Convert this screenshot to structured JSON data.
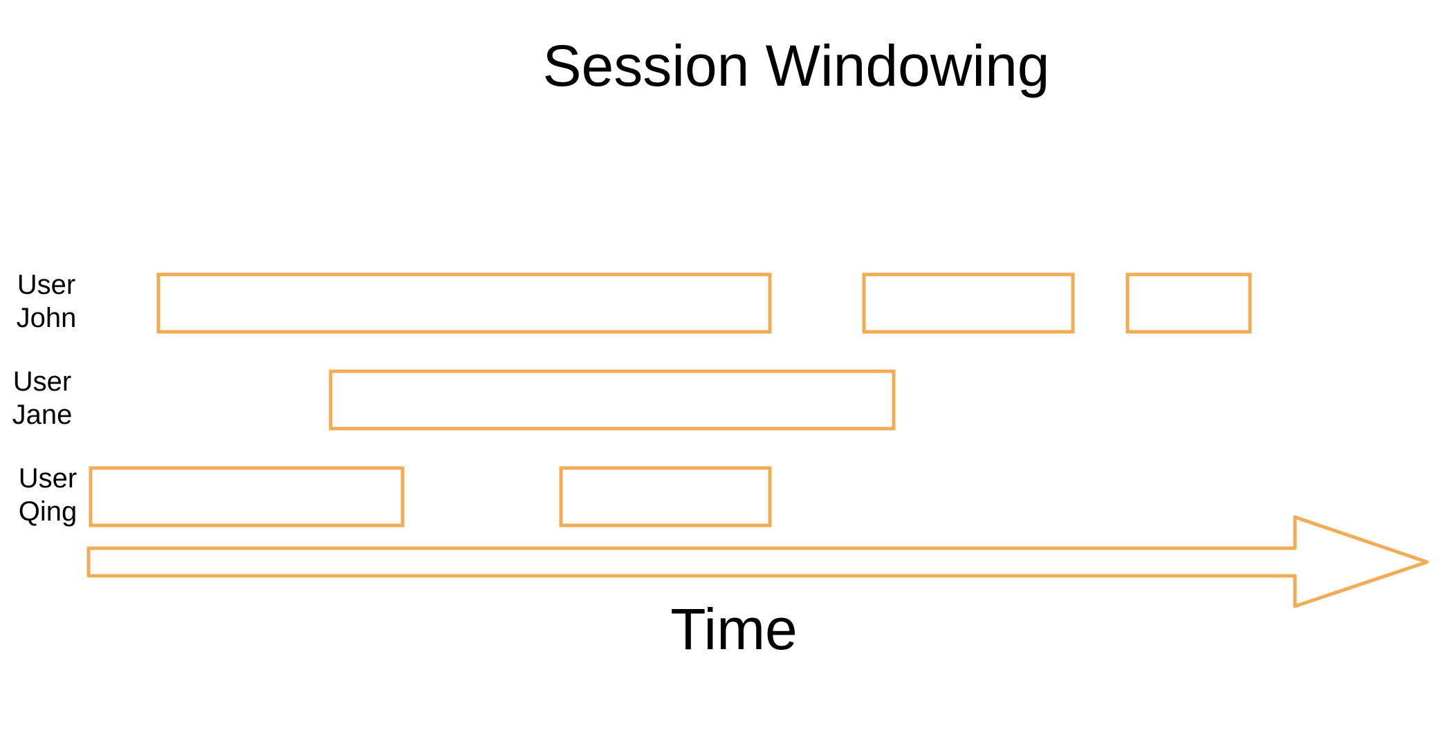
{
  "title": "Session Windowing",
  "axis": {
    "label": "Time"
  },
  "accent_color": "#f0ad55",
  "rows": [
    {
      "user_line": "User",
      "name_line": "John",
      "sessions": [
        [
          0.0,
          0.455
        ],
        [
          0.525,
          0.68
        ],
        [
          0.72,
          0.81
        ]
      ]
    },
    {
      "user_line": "User",
      "name_line": "Jane",
      "sessions": [
        [
          0.18,
          0.6
        ]
      ]
    },
    {
      "user_line": "User",
      "name_line": "Qing",
      "sessions": [
        [
          0.0,
          0.235
        ],
        [
          0.35,
          0.51
        ]
      ]
    }
  ]
}
